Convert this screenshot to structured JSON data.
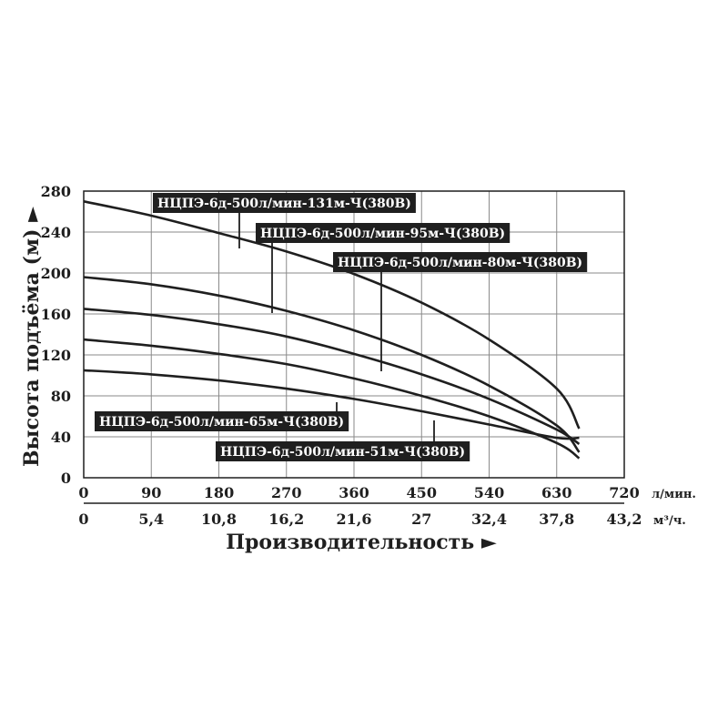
{
  "chart_data": {
    "type": "line",
    "xlabel": "Производительность ►",
    "ylabel": "Высота подъёма (м) ►",
    "xlim": [
      0,
      720
    ],
    "ylim": [
      0,
      280
    ],
    "x_ticks": [
      "0",
      "90",
      "180",
      "270",
      "360",
      "450",
      "540",
      "630",
      "720"
    ],
    "x_unit": "л/мин.",
    "x2_ticks": [
      "0",
      "5,4",
      "10,8",
      "16,2",
      "21,6",
      "27",
      "32,4",
      "37,8",
      "43,2"
    ],
    "x2_unit": "м³/ч.",
    "y_ticks": [
      "0",
      "40",
      "80",
      "120",
      "160",
      "200",
      "240",
      "280"
    ],
    "grid": true,
    "series": [
      {
        "name": "НЦПЭ-6д-500л/мин-131м-Ч(380В)",
        "x": [
          0,
          90,
          180,
          270,
          360,
          450,
          540,
          630,
          660
        ],
        "y": [
          270,
          256,
          239,
          221,
          199,
          171,
          135,
          87,
          48
        ]
      },
      {
        "name": "НЦПЭ-6д-500л/мин-95м-Ч(380В)",
        "x": [
          0,
          90,
          180,
          270,
          360,
          450,
          540,
          630,
          660
        ],
        "y": [
          196,
          189,
          178,
          163,
          144,
          120,
          90,
          51,
          25
        ]
      },
      {
        "name": "НЦПЭ-6д-500л/мин-80м-Ч(380В)",
        "x": [
          0,
          90,
          180,
          270,
          360,
          450,
          540,
          630,
          660
        ],
        "y": [
          165,
          159,
          150,
          138,
          121,
          101,
          77,
          47,
          33
        ]
      },
      {
        "name": "НЦПЭ-6д-500л/мин-65м-Ч(380В)",
        "x": [
          0,
          90,
          180,
          270,
          360,
          450,
          540,
          630,
          660
        ],
        "y": [
          135,
          129,
          121,
          111,
          97,
          80,
          60,
          34,
          19
        ]
      },
      {
        "name": "НЦПЭ-6д-500л/мин-51м-Ч(380В)",
        "x": [
          0,
          90,
          180,
          270,
          360,
          450,
          540,
          630,
          660
        ],
        "y": [
          105,
          101,
          95,
          87,
          77,
          65,
          52,
          39,
          39
        ]
      }
    ]
  }
}
